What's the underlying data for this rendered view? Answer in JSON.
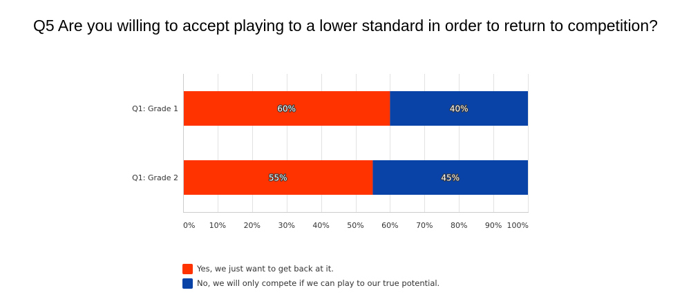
{
  "chart_data": {
    "type": "bar",
    "orientation": "horizontal",
    "stacked": true,
    "title": "Q5 Are you willing to accept playing to a lower standard in order to return to competition?",
    "categories": [
      "Q1: Grade 1",
      "Q1: Grade 2"
    ],
    "series": [
      {
        "name": "Yes, we just want to get back at it.",
        "color": "#ff3300",
        "values": [
          60,
          55
        ],
        "labels": [
          "60%",
          "55%"
        ]
      },
      {
        "name": "No, we will only compete if we can play to our true potential.",
        "color": "#0a43a8",
        "values": [
          40,
          45
        ],
        "labels": [
          "40%",
          "45%"
        ]
      }
    ],
    "x_ticks": [
      "0%",
      "10%",
      "20%",
      "30%",
      "40%",
      "50%",
      "60%",
      "70%",
      "80%",
      "90%",
      "100%"
    ],
    "xlim": [
      0,
      100
    ],
    "grid": true,
    "legend_position": "bottom-left"
  }
}
